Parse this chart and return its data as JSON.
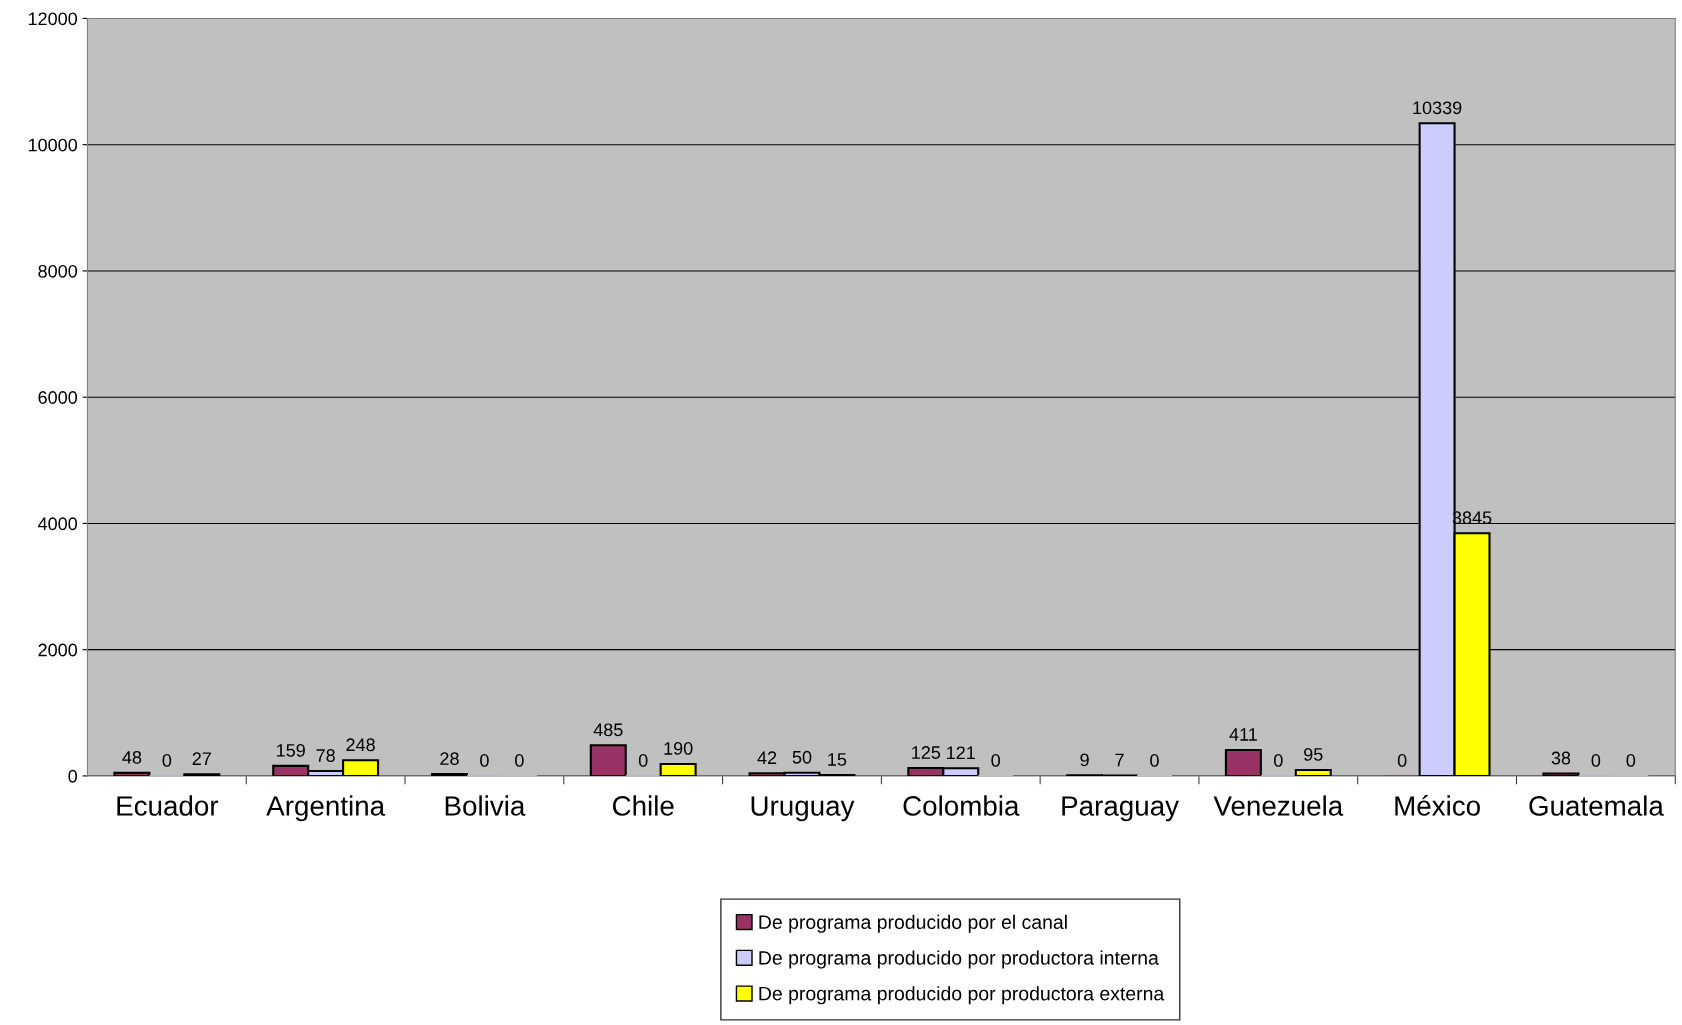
{
  "chart_data": {
    "type": "bar",
    "categories": [
      "Ecuador",
      "Argentina",
      "Bolivia",
      "Chile",
      "Uruguay",
      "Colombia",
      "Paraguay",
      "Venezuela",
      "México",
      "Guatemala"
    ],
    "series": [
      {
        "name": "De programa producido por el canal",
        "color": "#993366",
        "values": [
          48,
          159,
          28,
          485,
          42,
          125,
          9,
          411,
          0,
          38
        ]
      },
      {
        "name": "De programa producido por productora interna",
        "color": "#ccccff",
        "values": [
          0,
          78,
          0,
          0,
          50,
          121,
          7,
          0,
          10339,
          0
        ]
      },
      {
        "name": "De programa producido por productora externa",
        "color": "#ffff00",
        "values": [
          27,
          248,
          0,
          190,
          15,
          0,
          0,
          95,
          3845,
          0
        ]
      }
    ],
    "ylim": [
      0,
      12000
    ],
    "yticks": [
      0,
      2000,
      4000,
      6000,
      8000,
      10000,
      12000
    ],
    "grid": "y",
    "legend": "bottom",
    "data_labels": true
  }
}
